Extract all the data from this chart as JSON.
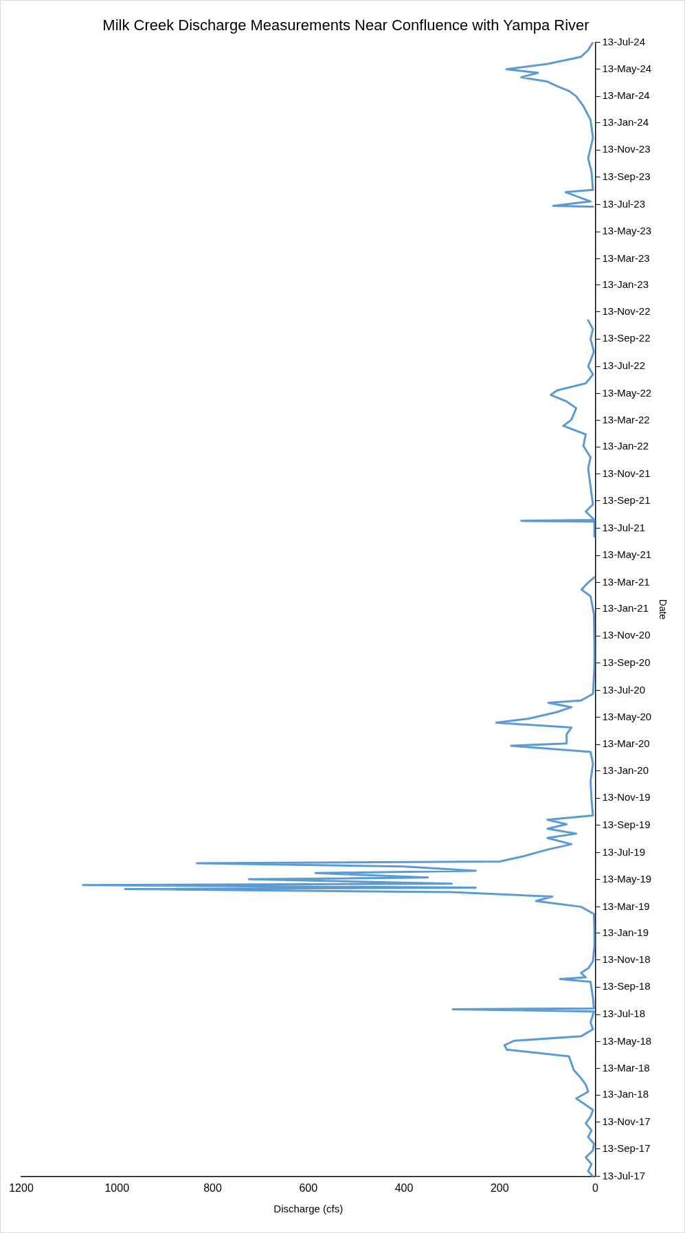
{
  "chart_data": {
    "type": "line",
    "title": "Milk Creek Discharge Measurements Near Confluence with Yampa River",
    "xlabel": "Discharge (cfs)",
    "ylabel": "Date",
    "orientation": "horizontal",
    "legend": false,
    "grid": false,
    "marker": "none",
    "line_style": "solid",
    "xlim": [
      1200,
      0
    ],
    "xticks": [
      0,
      200,
      400,
      600,
      800,
      1000,
      1200
    ],
    "ylim": [
      "2017-07-13",
      "2024-07-13"
    ],
    "yticks": [
      {
        "value": "2017-07-13",
        "label": "13-Jul-17"
      },
      {
        "value": "2017-09-13",
        "label": "13-Sep-17"
      },
      {
        "value": "2017-11-13",
        "label": "13-Nov-17"
      },
      {
        "value": "2018-01-13",
        "label": "13-Jan-18"
      },
      {
        "value": "2018-03-13",
        "label": "13-Mar-18"
      },
      {
        "value": "2018-05-13",
        "label": "13-May-18"
      },
      {
        "value": "2018-07-13",
        "label": "13-Jul-18"
      },
      {
        "value": "2018-09-13",
        "label": "13-Sep-18"
      },
      {
        "value": "2018-11-13",
        "label": "13-Nov-18"
      },
      {
        "value": "2019-01-13",
        "label": "13-Jan-19"
      },
      {
        "value": "2019-03-13",
        "label": "13-Mar-19"
      },
      {
        "value": "2019-05-13",
        "label": "13-May-19"
      },
      {
        "value": "2019-07-13",
        "label": "13-Jul-19"
      },
      {
        "value": "2019-09-13",
        "label": "13-Sep-19"
      },
      {
        "value": "2019-11-13",
        "label": "13-Nov-19"
      },
      {
        "value": "2020-01-13",
        "label": "13-Jan-20"
      },
      {
        "value": "2020-03-13",
        "label": "13-Mar-20"
      },
      {
        "value": "2020-05-13",
        "label": "13-May-20"
      },
      {
        "value": "2020-07-13",
        "label": "13-Jul-20"
      },
      {
        "value": "2020-09-13",
        "label": "13-Sep-20"
      },
      {
        "value": "2020-11-13",
        "label": "13-Nov-20"
      },
      {
        "value": "2021-01-13",
        "label": "13-Jan-21"
      },
      {
        "value": "2021-03-13",
        "label": "13-Mar-21"
      },
      {
        "value": "2021-05-13",
        "label": "13-May-21"
      },
      {
        "value": "2021-07-13",
        "label": "13-Jul-21"
      },
      {
        "value": "2021-09-13",
        "label": "13-Sep-21"
      },
      {
        "value": "2021-11-13",
        "label": "13-Nov-21"
      },
      {
        "value": "2022-01-13",
        "label": "13-Jan-22"
      },
      {
        "value": "2022-03-13",
        "label": "13-Mar-22"
      },
      {
        "value": "2022-05-13",
        "label": "13-May-22"
      },
      {
        "value": "2022-07-13",
        "label": "13-Jul-22"
      },
      {
        "value": "2022-09-13",
        "label": "13-Sep-22"
      },
      {
        "value": "2022-11-13",
        "label": "13-Nov-22"
      },
      {
        "value": "2023-01-13",
        "label": "13-Jan-23"
      },
      {
        "value": "2023-03-13",
        "label": "13-Mar-23"
      },
      {
        "value": "2023-05-13",
        "label": "13-May-23"
      },
      {
        "value": "2023-07-13",
        "label": "13-Jul-23"
      },
      {
        "value": "2023-09-13",
        "label": "13-Sep-23"
      },
      {
        "value": "2023-11-13",
        "label": "13-Nov-23"
      },
      {
        "value": "2024-01-13",
        "label": "13-Jan-24"
      },
      {
        "value": "2024-03-13",
        "label": "13-Mar-24"
      },
      {
        "value": "2024-05-13",
        "label": "13-May-24"
      },
      {
        "value": "2024-07-13",
        "label": "13-Jul-24"
      }
    ],
    "x": [
      "2017-07-13",
      "2017-07-25",
      "2017-08-10",
      "2017-08-25",
      "2017-09-10",
      "2017-09-25",
      "2017-10-10",
      "2017-10-25",
      "2017-11-10",
      "2017-11-25",
      "2017-12-10",
      "2017-12-25",
      "2018-01-05",
      "2018-01-20",
      "2018-02-05",
      "2018-02-20",
      "2018-03-10",
      "2018-03-25",
      "2018-04-10",
      "2018-04-25",
      "2018-05-05",
      "2018-05-15",
      "2018-05-25",
      "2018-06-10",
      "2018-06-25",
      "2018-07-20",
      "2018-07-25",
      "2018-07-27",
      "2018-08-20",
      "2018-09-25",
      "2018-10-01",
      "2018-10-05",
      "2018-10-15",
      "2018-10-25",
      "2018-11-10",
      "2018-12-15",
      "2019-01-20",
      "2019-02-25",
      "2019-03-13",
      "2019-03-26",
      "2019-04-05",
      "2019-04-15",
      "2019-04-22",
      "2019-04-25",
      "2019-05-01",
      "2019-05-04",
      "2019-05-14",
      "2019-05-18",
      "2019-05-28",
      "2019-06-02",
      "2019-06-12",
      "2019-06-19",
      "2019-06-23",
      "2019-07-05",
      "2019-07-20",
      "2019-08-01",
      "2019-08-15",
      "2019-08-25",
      "2019-09-05",
      "2019-09-15",
      "2019-09-25",
      "2019-10-05",
      "2019-11-10",
      "2019-12-20",
      "2020-01-30",
      "2020-02-25",
      "2020-03-10",
      "2020-03-15",
      "2020-04-05",
      "2020-04-20",
      "2020-05-01",
      "2020-05-10",
      "2020-05-25",
      "2020-06-05",
      "2020-06-15",
      "2020-06-20",
      "2020-07-05",
      "2020-09-01",
      "2020-11-01",
      "2021-01-01",
      "2021-02-10",
      "2021-02-25",
      "2021-03-13",
      "2021-03-25",
      "2021-04-05",
      "2021-06-25",
      "2021-07-28",
      "2021-07-30",
      "2021-08-01",
      "2021-08-20",
      "2021-09-05",
      "2021-10-15",
      "2021-11-25",
      "2021-12-20",
      "2022-01-15",
      "2022-02-10",
      "2022-03-01",
      "2022-03-15",
      "2022-04-10",
      "2022-04-25",
      "2022-05-10",
      "2022-05-20",
      "2022-06-05",
      "2022-06-25",
      "2022-07-13",
      "2022-08-15",
      "2022-09-13",
      "2022-10-05",
      "2022-10-25",
      "2022-10-26",
      "2023-07-05",
      "2023-07-08",
      "2023-07-10",
      "2023-07-20",
      "2023-08-10",
      "2023-08-15",
      "2023-09-25",
      "2023-10-25",
      "2023-12-10",
      "2024-01-20",
      "2024-02-20",
      "2024-03-13",
      "2024-03-25",
      "2024-04-05",
      "2024-04-15",
      "2024-04-25",
      "2024-05-05",
      "2024-05-13",
      "2024-05-25",
      "2024-06-10",
      "2024-06-25",
      "2024-07-13"
    ],
    "series": [
      {
        "color": "#5b9bd5",
        "values": [
          5,
          15,
          8,
          20,
          5,
          3,
          15,
          8,
          20,
          10,
          5,
          25,
          40,
          15,
          20,
          30,
          45,
          50,
          55,
          185,
          190,
          170,
          30,
          5,
          10,
          3,
          298,
          3,
          5,
          10,
          74,
          20,
          30,
          15,
          5,
          2,
          2,
          3,
          30,
          124,
          90,
          300,
          983,
          250,
          1071,
          300,
          724,
          350,
          585,
          250,
          400,
          833,
          200,
          150,
          100,
          50,
          100,
          40,
          100,
          60,
          100,
          5,
          8,
          10,
          5,
          10,
          176,
          60,
          60,
          50,
          207,
          140,
          80,
          50,
          98,
          30,
          5,
          2,
          2,
          3,
          10,
          29,
          15,
          2,
          null,
          2,
          2,
          155,
          2,
          20,
          5,
          10,
          15,
          10,
          25,
          20,
          67,
          50,
          40,
          60,
          93,
          80,
          20,
          5,
          15,
          3,
          10,
          5,
          15,
          null,
          null,
          5,
          88,
          10,
          62,
          5,
          8,
          15,
          5,
          10,
          25,
          40,
          55,
          80,
          100,
          155,
          120,
          186,
          100,
          30,
          15,
          5
        ]
      }
    ]
  }
}
